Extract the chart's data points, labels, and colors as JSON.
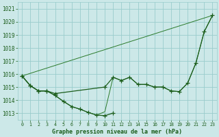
{
  "title": "Graphe pression niveau de la mer (hPa)",
  "bg_color": "#cce8e8",
  "grid_color": "#99cccc",
  "line_color_dark": "#1a5c1a",
  "line_color_med": "#2a7a2a",
  "xlim": [
    -0.5,
    23.5
  ],
  "ylim": [
    1012.5,
    1021.5
  ],
  "yticks": [
    1013,
    1014,
    1015,
    1016,
    1017,
    1018,
    1019,
    1020,
    1021
  ],
  "xticks": [
    0,
    1,
    2,
    3,
    4,
    5,
    6,
    7,
    8,
    9,
    10,
    11,
    12,
    13,
    14,
    15,
    16,
    17,
    18,
    19,
    20,
    21,
    22,
    23
  ],
  "line1_x": [
    0,
    1,
    2,
    3,
    4,
    5,
    6,
    7,
    8,
    9,
    10,
    11
  ],
  "line1_y": [
    1015.85,
    1015.1,
    1014.7,
    1014.7,
    1014.35,
    1013.9,
    1013.5,
    1013.3,
    1013.05,
    1012.85,
    1012.8,
    1013.0
  ],
  "line2_x": [
    0,
    1,
    2,
    3,
    4,
    10,
    11,
    12,
    13,
    14,
    15,
    16,
    17,
    18,
    19,
    20,
    21,
    22,
    23
  ],
  "line2_y": [
    1015.85,
    1015.1,
    1014.7,
    1014.7,
    1014.5,
    1015.0,
    1015.75,
    1015.5,
    1015.75,
    1015.2,
    1015.2,
    1015.0,
    1015.0,
    1014.7,
    1014.65,
    1015.3,
    1016.85,
    1019.25,
    1020.5
  ],
  "line3_x": [
    0,
    23
  ],
  "line3_y": [
    1015.85,
    1020.5
  ],
  "line4_x": [
    0,
    1,
    2,
    3,
    4,
    5,
    6,
    7,
    8,
    9,
    10,
    11,
    12,
    13,
    14,
    15,
    16,
    17,
    18,
    19,
    20,
    21,
    22,
    23
  ],
  "line4_y": [
    1015.85,
    1015.1,
    1014.7,
    1014.7,
    1014.35,
    1013.9,
    1013.5,
    1013.3,
    1013.05,
    1012.85,
    1013.1,
    1015.75,
    1015.5,
    1015.75,
    1015.2,
    1015.2,
    1015.0,
    1015.0,
    1014.7,
    1014.65,
    1015.3,
    1016.85,
    1019.25,
    1020.5
  ]
}
